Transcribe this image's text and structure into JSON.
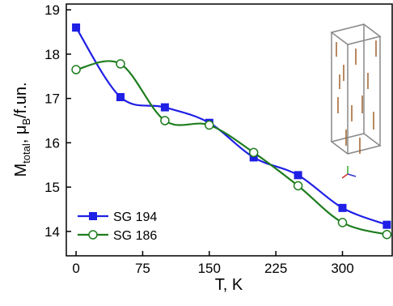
{
  "chart_data": {
    "type": "line",
    "x_label": "T, K",
    "y_label_parts": [
      "M",
      "total",
      ", μ",
      "B",
      "/f.un."
    ],
    "x": [
      0,
      50,
      100,
      150,
      200,
      250,
      300,
      350
    ],
    "series": [
      {
        "name": "SG 194",
        "color": "#1f1fe6",
        "marker": "square",
        "values": [
          18.6,
          17.03,
          16.8,
          16.45,
          15.67,
          15.27,
          14.53,
          14.15
        ]
      },
      {
        "name": "SG 186",
        "color": "#1e7d1e",
        "marker": "circle",
        "values": [
          17.65,
          17.78,
          16.5,
          16.4,
          15.78,
          15.03,
          14.2,
          13.93
        ]
      }
    ],
    "xlim": [
      -11,
      356
    ],
    "ylim": [
      13.45,
      19.13
    ],
    "xticks": [
      0,
      75,
      150,
      225,
      300
    ],
    "yticks": [
      14,
      15,
      16,
      17,
      18,
      19
    ],
    "legend": "lower-left"
  }
}
